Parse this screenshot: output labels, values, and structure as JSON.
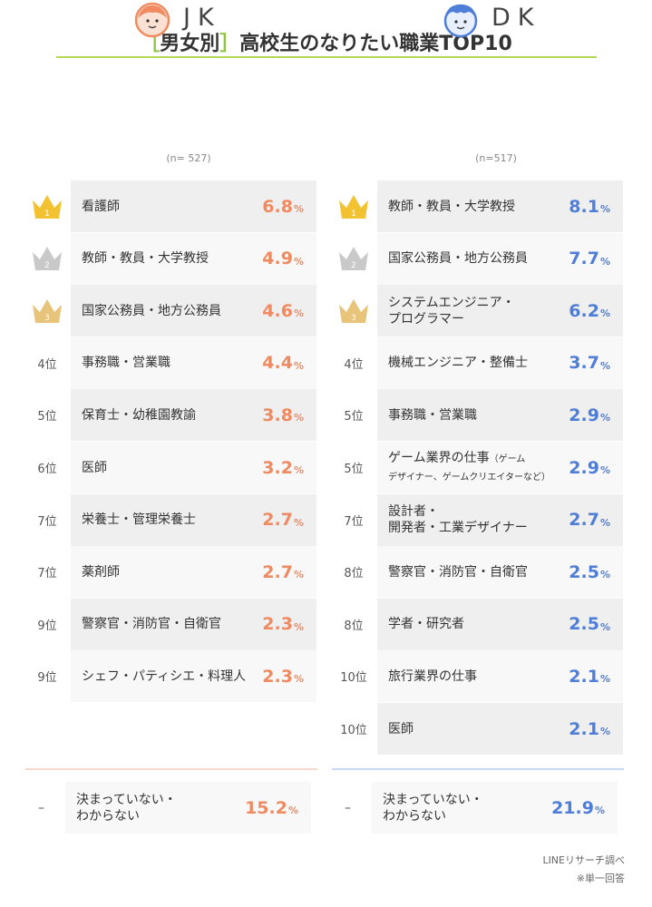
{
  "title": {
    "bracket_open": "［",
    "bracket_text": "男女別",
    "bracket_close": "］",
    "main": "高校生のなりたい職業TOP10"
  },
  "chart_data": [
    {
      "type": "table",
      "group": "JK",
      "n": "(n= 527)",
      "unit": "%",
      "rows": [
        {
          "rank": "1",
          "job": "看護師",
          "value": 6.8,
          "display": "6.8"
        },
        {
          "rank": "2",
          "job": "教師・教員・大学教授",
          "value": 4.9,
          "display": "4.9"
        },
        {
          "rank": "3",
          "job": "国家公務員・地方公務員",
          "value": 4.6,
          "display": "4.6"
        },
        {
          "rank": "4位",
          "job": "事務職・営業職",
          "value": 4.4,
          "display": "4.4"
        },
        {
          "rank": "5位",
          "job": "保育士・幼稚園教諭",
          "value": 3.8,
          "display": "3.8"
        },
        {
          "rank": "6位",
          "job": "医師",
          "value": 3.2,
          "display": "3.2"
        },
        {
          "rank": "7位",
          "job": "栄養士・管理栄養士",
          "value": 2.7,
          "display": "2.7"
        },
        {
          "rank": "7位",
          "job": "薬剤師",
          "value": 2.7,
          "display": "2.7"
        },
        {
          "rank": "9位",
          "job": "警察官・消防官・自衛官",
          "value": 2.3,
          "display": "2.3"
        },
        {
          "rank": "9位",
          "job": "シェフ・パティシエ・料理人",
          "value": 2.3,
          "display": "2.3"
        }
      ],
      "other": {
        "rank": "–",
        "job_line1": "決まっていない・",
        "job_line2": "わからない",
        "value": 15.2,
        "display": "15.2"
      }
    },
    {
      "type": "table",
      "group": "DK",
      "n": "(n=517)",
      "unit": "%",
      "rows": [
        {
          "rank": "1",
          "job": "教師・教員・大学教授",
          "value": 8.1,
          "display": "8.1"
        },
        {
          "rank": "2",
          "job": "国家公務員・地方公務員",
          "value": 7.7,
          "display": "7.7"
        },
        {
          "rank": "3",
          "job_line1": "システムエンジニア・",
          "job_line2": "プログラマー",
          "value": 6.2,
          "display": "6.2"
        },
        {
          "rank": "4位",
          "job": "機械エンジニア・整備士",
          "value": 3.7,
          "display": "3.7"
        },
        {
          "rank": "5位",
          "job": "事務職・営業職",
          "value": 2.9,
          "display": "2.9"
        },
        {
          "rank": "5位",
          "job_line1": "ゲーム業界の仕事",
          "job_line1_small": "（ゲーム",
          "job_line2": "デザイナー、ゲームクリエイターなど）",
          "value": 2.9,
          "display": "2.9"
        },
        {
          "rank": "7位",
          "job_line1": "設計者・",
          "job_line2": "開発者・工業デザイナー",
          "value": 2.7,
          "display": "2.7"
        },
        {
          "rank": "8位",
          "job": "警察官・消防官・自衛官",
          "value": 2.5,
          "display": "2.5"
        },
        {
          "rank": "8位",
          "job": "学者・研究者",
          "value": 2.5,
          "display": "2.5"
        },
        {
          "rank": "10位",
          "job": "旅行業界の仕事",
          "value": 2.1,
          "display": "2.1"
        },
        {
          "rank": "10位",
          "job": "医師",
          "value": 2.1,
          "display": "2.1"
        }
      ],
      "other": {
        "rank": "–",
        "job_line1": "決まっていない・",
        "job_line2": "わからない",
        "value": 21.9,
        "display": "21.9"
      }
    }
  ],
  "colors": {
    "accent_green": "#8cc63f",
    "jk_value": "#f08a60",
    "dk_value": "#4f7ed8",
    "gold_crown": "#f2c230",
    "silver_crown": "#c9c9c9",
    "bronze_crown": "#e8c37a"
  },
  "icons": {
    "jk_avatar": "girl-face-icon",
    "dk_avatar": "boy-face-icon",
    "rank1": "gold-crown-icon",
    "rank2": "silver-crown-icon",
    "rank3": "bronze-crown-icon"
  },
  "footer": {
    "source": "LINEリサーチ調べ",
    "note": "※単一回答"
  }
}
